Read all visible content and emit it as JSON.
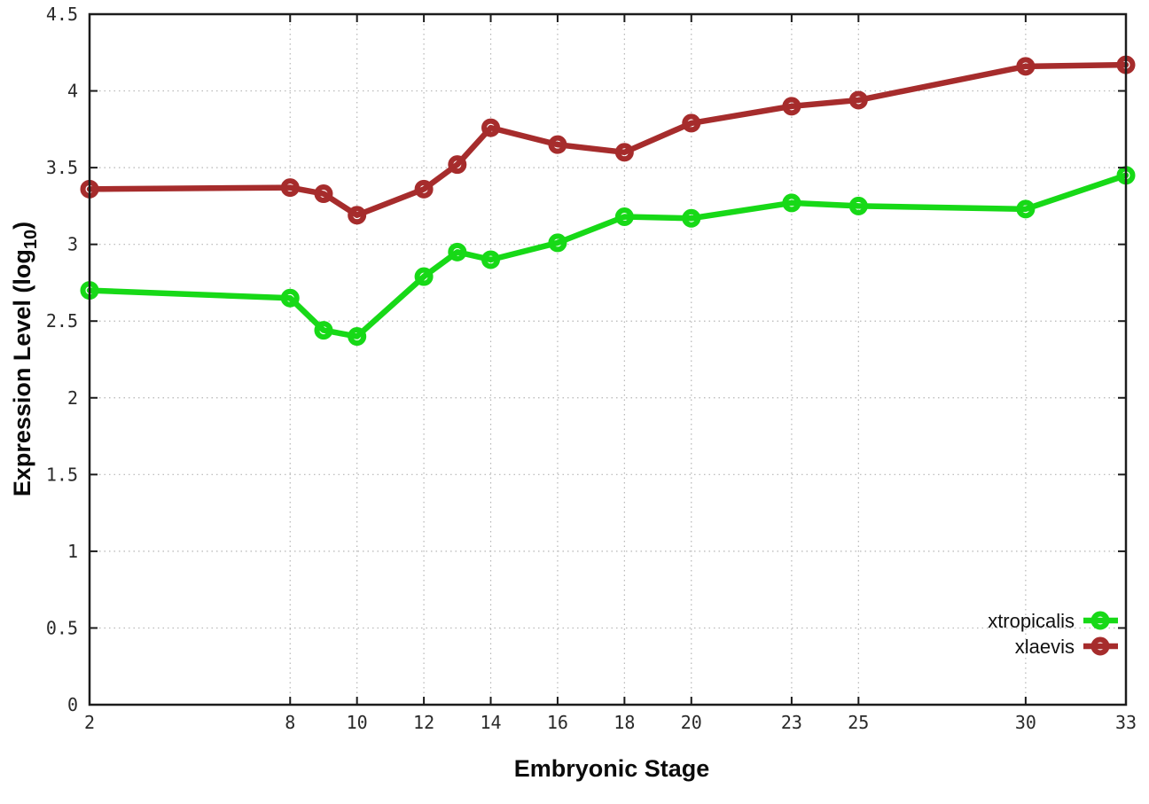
{
  "chart_data": {
    "type": "line",
    "title": "",
    "xlabel": "Embryonic Stage",
    "ylabel": "Expression Level (log10)",
    "ylabel_parts": [
      "Expression Level (log",
      "10",
      ")"
    ],
    "xlim": [
      2,
      33
    ],
    "ylim": [
      0,
      4.5
    ],
    "grid": true,
    "legend_position": "bottom-right-inside",
    "x": [
      2,
      8,
      9,
      10,
      12,
      13,
      14,
      16,
      18,
      20,
      23,
      25,
      30,
      33
    ],
    "xtick_values": [
      2,
      8,
      10,
      12,
      14,
      16,
      18,
      20,
      23,
      25,
      30,
      33
    ],
    "xtick_labels": [
      "2",
      "8",
      "10",
      "12",
      "14",
      "16",
      "18",
      "20",
      "23",
      "25",
      "30",
      "33"
    ],
    "ytick_values": [
      0,
      0.5,
      1,
      1.5,
      2,
      2.5,
      3,
      3.5,
      4,
      4.5
    ],
    "ytick_labels": [
      "0",
      "0.5",
      "1",
      "1.5",
      "2",
      "2.5",
      "3",
      "3.5",
      "4",
      "4.5"
    ],
    "series": [
      {
        "name": "xtropicalis",
        "color": "#17d917",
        "marker": "open-circle",
        "values": [
          2.7,
          2.65,
          2.44,
          2.4,
          2.79,
          2.95,
          2.9,
          3.01,
          3.18,
          3.17,
          3.27,
          3.25,
          3.23,
          3.45
        ]
      },
      {
        "name": "xlaevis",
        "color": "#a62c2c",
        "marker": "open-circle",
        "values": [
          3.36,
          3.37,
          3.33,
          3.19,
          3.36,
          3.52,
          3.76,
          3.65,
          3.6,
          3.79,
          3.9,
          3.94,
          4.16,
          4.17
        ]
      }
    ],
    "colors": {
      "plot_border": "#1c1c1c",
      "grid": "#b5b5b5",
      "background": "#ffffff"
    }
  }
}
